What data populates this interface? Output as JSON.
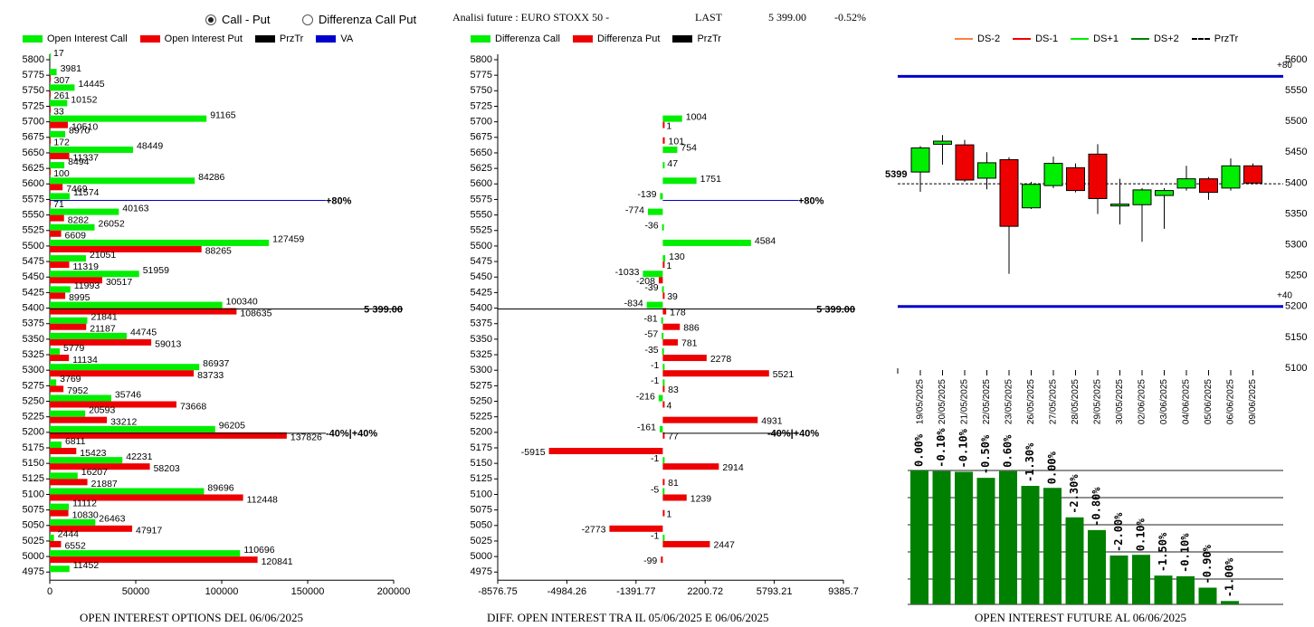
{
  "controls": {
    "radio_call_put": "Call - Put",
    "radio_diff": "Differenza Call Put",
    "selected": "call_put"
  },
  "header": {
    "title": "Analisi future : EURO STOXX 50 -",
    "last_label": "LAST",
    "last_value": "5 399.00",
    "change": "-0.52%"
  },
  "captions": {
    "left": "OPEN INTEREST OPTIONS DEL 06/06/2025",
    "middle": "DIFF. OPEN INTEREST TRA IL 05/06/2025 E 06/06/2025",
    "right": "OPEN INTEREST FUTURE AL 06/06/2025"
  },
  "colors": {
    "call": "#00ee00",
    "put": "#ee0000",
    "prztr": "#000000",
    "va": "#0000cc",
    "future_bar": "#008000",
    "ds_minus2": "#ff8040",
    "ds_minus1": "#ee0000",
    "ds_plus1": "#00ee00",
    "ds_plus2": "#008000"
  },
  "chart_data": [
    {
      "type": "bar",
      "orientation": "horizontal",
      "legend": [
        "Open Interest Call",
        "Open Interest Put",
        "PrzTr",
        "VA"
      ],
      "strikes": [
        "5800",
        "5775",
        "5750",
        "5725",
        "5700",
        "5675",
        "5650",
        "5625",
        "5600",
        "5575",
        "5550",
        "5525",
        "5500",
        "5475",
        "5450",
        "5425",
        "5400",
        "5375",
        "5350",
        "5325",
        "5300",
        "5275",
        "5250",
        "5225",
        "5200",
        "5175",
        "5150",
        "5125",
        "5100",
        "5075",
        "5050",
        "5025",
        "5000",
        "4975"
      ],
      "series": [
        {
          "name": "Open Interest Call",
          "values": [
            17,
            3981,
            14445,
            10152,
            91165,
            8970,
            48449,
            8494,
            84286,
            11574,
            40163,
            26052,
            127459,
            21051,
            51959,
            11993,
            100340,
            21841,
            44745,
            5779,
            86937,
            3769,
            35746,
            20593,
            96205,
            6811,
            42231,
            16207,
            89696,
            11112,
            26463,
            2444,
            110696,
            11452
          ]
        },
        {
          "name": "Open Interest Put",
          "values": [
            0,
            307,
            261,
            33,
            10510,
            172,
            11337,
            100,
            7469,
            71,
            8282,
            6609,
            88265,
            11319,
            30517,
            8995,
            108635,
            21187,
            59013,
            11134,
            83733,
            7952,
            73668,
            33212,
            137826,
            15423,
            58203,
            21887,
            112448,
            10830,
            47917,
            6552,
            120841,
            0
          ]
        }
      ],
      "x_ticks": [
        "0",
        "50000",
        "100000",
        "150000",
        "200000"
      ],
      "xlim": [
        0,
        200000
      ],
      "prztr": {
        "strike": "5400",
        "label": "5 399.00"
      },
      "lines": [
        {
          "strike": "5575",
          "label": "+80%"
        },
        {
          "strike": "5200",
          "label": "-40%|+40%"
        }
      ]
    },
    {
      "type": "bar",
      "orientation": "horizontal",
      "legend": [
        "Differenza Call",
        "Differenza Put",
        "PrzTr"
      ],
      "strikes": [
        "5800",
        "5775",
        "5750",
        "5725",
        "5700",
        "5675",
        "5650",
        "5625",
        "5600",
        "5575",
        "5550",
        "5525",
        "5500",
        "5475",
        "5450",
        "5425",
        "5400",
        "5375",
        "5350",
        "5325",
        "5300",
        "5275",
        "5250",
        "5225",
        "5200",
        "5175",
        "5150",
        "5125",
        "5100",
        "5075",
        "5050",
        "5025",
        "5000",
        "4975"
      ],
      "series": [
        {
          "name": "Differenza Call",
          "values": [
            null,
            null,
            null,
            null,
            1004,
            null,
            754,
            47,
            1751,
            -139,
            -774,
            -36,
            4584,
            130,
            -1033,
            -39,
            -834,
            -81,
            -57,
            -35,
            -1,
            -1,
            -216,
            null,
            -161,
            null,
            -1,
            null,
            -5,
            null,
            null,
            -1,
            null,
            null
          ]
        },
        {
          "name": "Differenza Put",
          "values": [
            null,
            null,
            null,
            null,
            1,
            101,
            null,
            null,
            null,
            null,
            null,
            null,
            null,
            1,
            -208,
            39,
            178,
            886,
            781,
            2278,
            5521,
            83,
            4,
            4931,
            77,
            -5915,
            2914,
            81,
            1239,
            1,
            -2773,
            2447,
            -99,
            null
          ]
        }
      ],
      "x_ticks": [
        "-8576.75",
        "-4984.26",
        "-1391.77",
        "2200.72",
        "5793.21",
        "9385.7"
      ],
      "xlim": [
        -8576.75,
        9385.7
      ],
      "prztr": {
        "strike": "5400",
        "label": "5 399.00"
      },
      "lines": [
        {
          "strike": "5575",
          "label": "+80%"
        },
        {
          "strike": "5200",
          "label": "-40%|+40%"
        }
      ]
    },
    {
      "type": "candlestick",
      "legend": [
        "DS-2",
        "DS-1",
        "DS+1",
        "DS+2",
        "PrzTr"
      ],
      "dates": [
        "19/05/2025",
        "20/05/2025",
        "21/05/2025",
        "22/05/2025",
        "23/05/2025",
        "26/05/2025",
        "27/05/2025",
        "28/05/2025",
        "29/05/2025",
        "30/05/2025",
        "02/06/2025",
        "03/06/2025",
        "04/06/2025",
        "05/06/2025",
        "06/06/2025",
        "09/06/2025"
      ],
      "candles": [
        {
          "open": 5418,
          "close": 5457,
          "high": 5460,
          "low": 5386
        },
        {
          "open": 5463,
          "close": 5468,
          "high": 5478,
          "low": 5430
        },
        {
          "open": 5462,
          "close": 5405,
          "high": 5470,
          "low": 5402
        },
        {
          "open": 5408,
          "close": 5433,
          "high": 5450,
          "low": 5390
        },
        {
          "open": 5438,
          "close": 5330,
          "high": 5442,
          "low": 5253
        },
        {
          "open": 5360,
          "close": 5398,
          "high": 5402,
          "low": 5358
        },
        {
          "open": 5396,
          "close": 5432,
          "high": 5443,
          "low": 5392
        },
        {
          "open": 5425,
          "close": 5388,
          "high": 5432,
          "low": 5385
        },
        {
          "open": 5447,
          "close": 5375,
          "high": 5463,
          "low": 5350
        },
        {
          "open": 5363,
          "close": 5366,
          "high": 5407,
          "low": 5333
        },
        {
          "open": 5365,
          "close": 5389,
          "high": 5392,
          "low": 5305
        },
        {
          "open": 5380,
          "close": 5388,
          "high": 5392,
          "low": 5326
        },
        {
          "open": 5392,
          "close": 5407,
          "high": 5428,
          "low": 5388
        },
        {
          "open": 5407,
          "close": 5385,
          "high": 5410,
          "low": 5373
        },
        {
          "open": 5392,
          "close": 5428,
          "high": 5440,
          "low": 5388
        },
        {
          "open": 5428,
          "close": 5400,
          "high": 5432,
          "low": 5398
        }
      ],
      "y_ticks": [
        "5100",
        "5150",
        "5200",
        "5250",
        "5300",
        "5350",
        "5400",
        "5450",
        "5500",
        "5550",
        "5600"
      ],
      "ylim": [
        5100,
        5600
      ],
      "prztr": {
        "value": 5399,
        "label": "5399"
      },
      "hlines": [
        {
          "value": 5573,
          "label": "+80"
        },
        {
          "value": 5200,
          "label": "+40"
        }
      ]
    },
    {
      "type": "bar",
      "dates": [
        "19/05/2025",
        "20/05/2025",
        "21/05/2025",
        "22/05/2025",
        "23/05/2025",
        "26/05/2025",
        "27/05/2025",
        "28/05/2025",
        "29/05/2025",
        "30/05/2025",
        "02/06/2025",
        "03/06/2025",
        "04/06/2025",
        "05/06/2025",
        "06/06/2025",
        "09/06/2025"
      ],
      "values": [
        100,
        99.5,
        99,
        94.5,
        99.5,
        88.5,
        87,
        65,
        55.5,
        36.5,
        37,
        21.5,
        21,
        12.5,
        2.5,
        null
      ],
      "labels": [
        "0.00%",
        "-0.10%",
        "-0.10%",
        "-0.50%",
        "0.60%",
        "-1.30%",
        "0.00%",
        "-2.30%",
        "-0.80%",
        "-2.00%",
        "0.10%",
        "-1.50%",
        "-0.10%",
        "-0.90%",
        "-1.00%",
        ""
      ],
      "ylim": [
        0,
        100
      ]
    }
  ]
}
